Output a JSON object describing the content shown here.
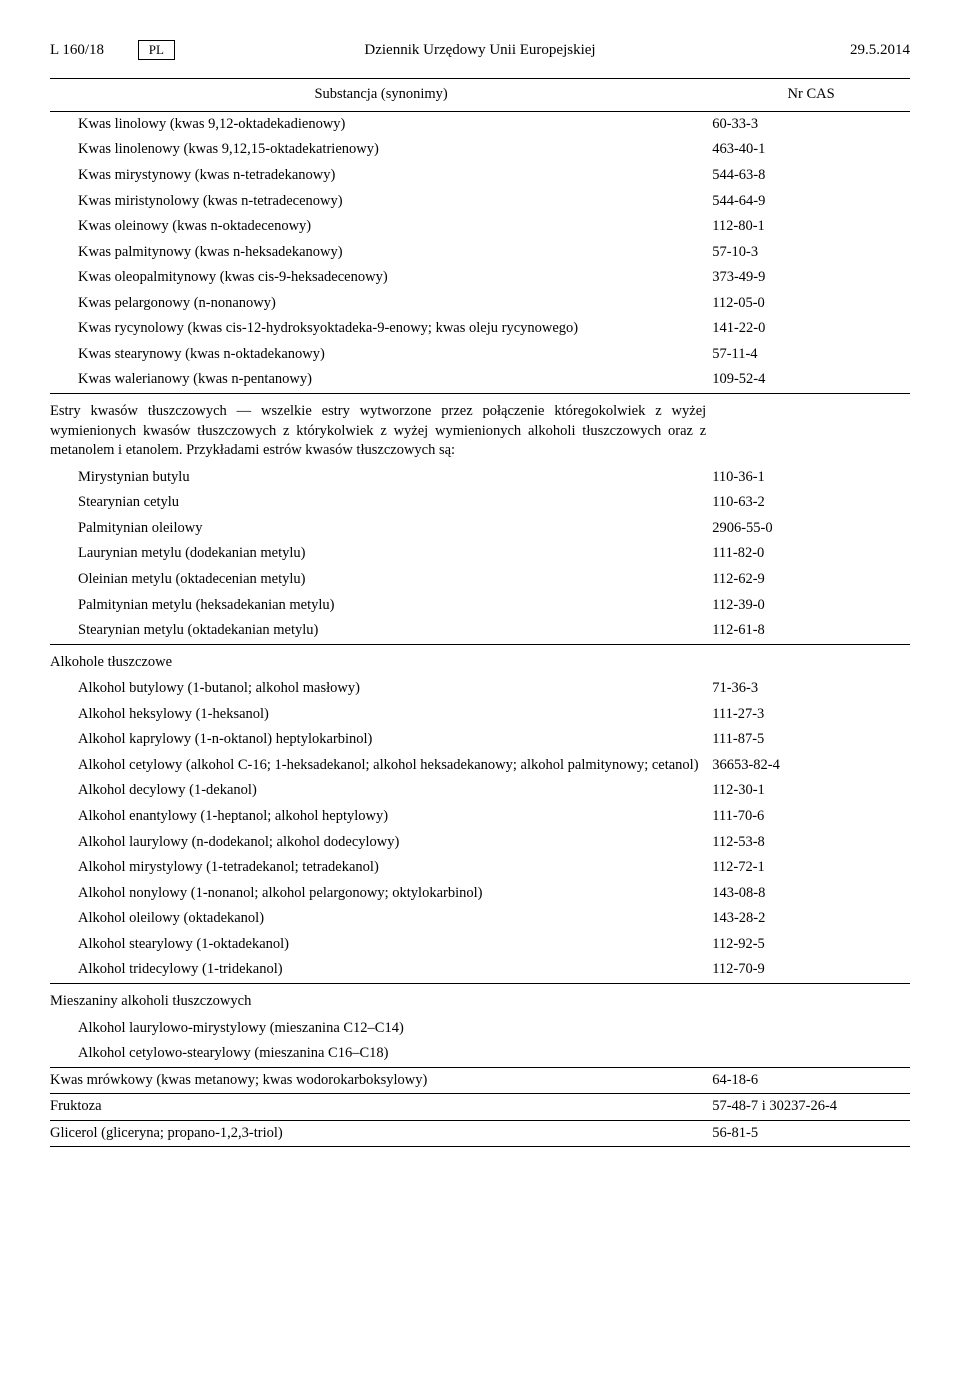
{
  "header": {
    "left": "L 160/18",
    "pl": "PL",
    "center": "Dziennik Urzędowy Unii Europejskiej",
    "right": "29.5.2014"
  },
  "col_name": "Substancja (synonimy)",
  "col_cas": "Nr CAS",
  "groups": [
    {
      "intro": null,
      "rows": [
        {
          "n": "Kwas linolowy (kwas 9,12-oktadekadienowy)",
          "c": "60-33-3"
        },
        {
          "n": "Kwas linolenowy (kwas 9,12,15-oktadekatrienowy)",
          "c": "463-40-1"
        },
        {
          "n": "Kwas mirystynowy (kwas n-tetradekanowy)",
          "c": "544-63-8"
        },
        {
          "n": "Kwas miristynolowy (kwas n-tetradecenowy)",
          "c": "544-64-9"
        },
        {
          "n": "Kwas oleinowy (kwas n-oktadecenowy)",
          "c": "112-80-1"
        },
        {
          "n": "Kwas palmitynowy (kwas n-heksadekanowy)",
          "c": "57-10-3"
        },
        {
          "n": "Kwas oleopalmitynowy (kwas cis-9-heksadecenowy)",
          "c": "373-49-9"
        },
        {
          "n": "Kwas pelargonowy (n-nonanowy)",
          "c": "112-05-0"
        },
        {
          "n": "Kwas rycynolowy (kwas cis-12-hydroksyoktadeka-9-enowy; kwas oleju rycynowego)",
          "c": "141-22-0"
        },
        {
          "n": "Kwas stearynowy (kwas n-oktadekanowy)",
          "c": "57-11-4"
        },
        {
          "n": "Kwas walerianowy (kwas n-pentanowy)",
          "c": "109-52-4"
        }
      ]
    },
    {
      "intro": "Estry kwasów tłuszczowych — wszelkie estry wytworzone przez połączenie któregokolwiek z wyżej wymienionych kwasów tłuszczowych z którykolwiek z wyżej wymienionych alkoholi tłuszczowych oraz z metanolem i etanolem. Przykładami estrów kwasów tłuszczowych są:",
      "rows": [
        {
          "n": "Mirystynian butylu",
          "c": "110-36-1"
        },
        {
          "n": "Stearynian cetylu",
          "c": "110-63-2"
        },
        {
          "n": "Palmitynian oleilowy",
          "c": "2906-55-0"
        },
        {
          "n": "Laurynian metylu (dodekanian metylu)",
          "c": "111-82-0"
        },
        {
          "n": "Oleinian metylu (oktadecenian metylu)",
          "c": "112-62-9"
        },
        {
          "n": "Palmitynian metylu (heksadekanian metylu)",
          "c": "112-39-0"
        },
        {
          "n": "Stearynian metylu (oktadekanian metylu)",
          "c": "112-61-8"
        }
      ]
    },
    {
      "intro": "Alkohole tłuszczowe",
      "rows": [
        {
          "n": "Alkohol butylowy (1-butanol; alkohol masłowy)",
          "c": "71-36-3"
        },
        {
          "n": "Alkohol heksylowy (1-heksanol)",
          "c": "111-27-3"
        },
        {
          "n": "Alkohol kaprylowy (1-n-oktanol) heptylokarbinol)",
          "c": "111-87-5"
        },
        {
          "n": "Alkohol cetylowy (alkohol C-16; 1-heksadekanol; alkohol heksadekanowy; alkohol palmitynowy; cetanol)",
          "c": "36653-82-4"
        },
        {
          "n": "Alkohol decylowy (1-dekanol)",
          "c": "112-30-1"
        },
        {
          "n": "Alkohol enantylowy (1-heptanol; alkohol heptylowy)",
          "c": "111-70-6"
        },
        {
          "n": "Alkohol laurylowy (n-dodekanol; alkohol dodecylowy)",
          "c": "112-53-8"
        },
        {
          "n": "Alkohol mirystylowy (1-tetradekanol; tetradekanol)",
          "c": "112-72-1"
        },
        {
          "n": "Alkohol nonylowy (1-nonanol; alkohol pelargonowy; oktylokarbinol)",
          "c": "143-08-8"
        },
        {
          "n": "Alkohol oleilowy (oktadekanol)",
          "c": "143-28-2"
        },
        {
          "n": "Alkohol stearylowy (1-oktadekanol)",
          "c": "112-92-5"
        },
        {
          "n": "Alkohol tridecylowy (1-tridekanol)",
          "c": "112-70-9"
        }
      ]
    },
    {
      "intro": "Mieszaniny alkoholi tłuszczowych",
      "rows": [
        {
          "n": "Alkohol laurylowo-mirystylowy (mieszanina C12–C14)",
          "c": ""
        },
        {
          "n": "Alkohol cetylowo-stearylowy (mieszanina C16–C18)",
          "c": ""
        }
      ]
    }
  ],
  "tail": [
    {
      "n": "Kwas mrówkowy (kwas metanowy; kwas wodorokarboksylowy)",
      "c": "64-18-6"
    },
    {
      "n": "Fruktoza",
      "c": "57-48-7 i 30237-26-4"
    },
    {
      "n": "Glicerol (gliceryna; propano-1,2,3-triol)",
      "c": "56-81-5"
    }
  ]
}
